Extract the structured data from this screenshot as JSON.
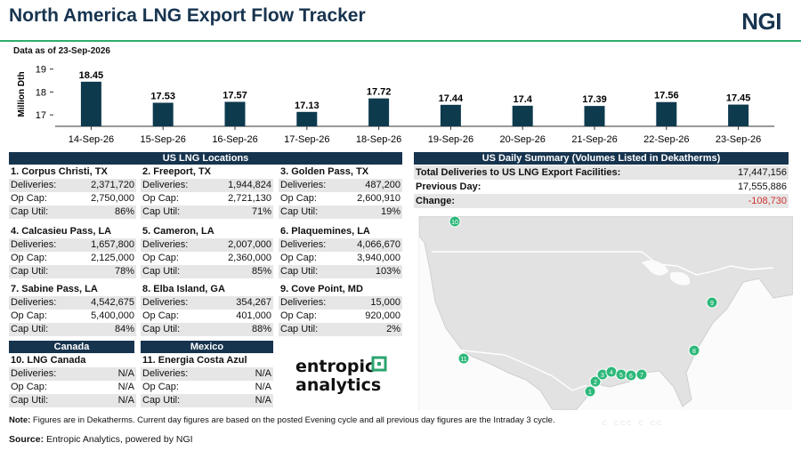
{
  "header": {
    "title": "North America LNG Export Flow Tracker",
    "logo": "NGI",
    "as_of": "Data as of 23-Sep-2026"
  },
  "chart_data": {
    "type": "bar",
    "categories": [
      "14-Sep-26",
      "15-Sep-26",
      "16-Sep-26",
      "17-Sep-26",
      "18-Sep-26",
      "19-Sep-26",
      "20-Sep-26",
      "21-Sep-26",
      "22-Sep-26",
      "23-Sep-26"
    ],
    "values": [
      18.45,
      17.53,
      17.57,
      17.13,
      17.72,
      17.44,
      17.4,
      17.39,
      17.56,
      17.45
    ],
    "value_labels": [
      "18.45",
      "17.53",
      "17.57",
      "17.13",
      "17.72",
      "17.44",
      "17.4",
      "17.39",
      "17.56",
      "17.45"
    ],
    "ylabel": "Million Dth",
    "yticks": [
      "17",
      "18",
      "19"
    ],
    "ylim": [
      16.5,
      19.3
    ],
    "color": "#0e3a4e"
  },
  "us_panel": {
    "title": "US LNG Locations"
  },
  "labels": {
    "deliveries": "Deliveries:",
    "op_cap": "Op Cap:",
    "cap_util": "Cap Util:"
  },
  "us_locations": [
    {
      "name": "1. Corpus Christi, TX",
      "deliveries": "2,371,720",
      "op_cap": "2,750,000",
      "cap_util": "86%"
    },
    {
      "name": "2. Freeport, TX",
      "deliveries": "1,944,824",
      "op_cap": "2,721,130",
      "cap_util": "71%"
    },
    {
      "name": "3. Golden Pass, TX",
      "deliveries": "487,200",
      "op_cap": "2,600,910",
      "cap_util": "19%"
    },
    {
      "name": "4. Calcasieu Pass, LA",
      "deliveries": "1,657,800",
      "op_cap": "2,125,000",
      "cap_util": "78%"
    },
    {
      "name": "5. Cameron, LA",
      "deliveries": "2,007,000",
      "op_cap": "2,360,000",
      "cap_util": "85%"
    },
    {
      "name": "6. Plaquemines, LA",
      "deliveries": "4,066,670",
      "op_cap": "3,940,000",
      "cap_util": "103%"
    },
    {
      "name": "7. Sabine Pass, LA",
      "deliveries": "4,542,675",
      "op_cap": "5,400,000",
      "cap_util": "84%"
    },
    {
      "name": "8. Elba Island, GA",
      "deliveries": "354,267",
      "op_cap": "401,000",
      "cap_util": "88%"
    },
    {
      "name": "9. Cove Point, MD",
      "deliveries": "15,000",
      "op_cap": "920,000",
      "cap_util": "2%"
    }
  ],
  "canada": {
    "title": "Canada",
    "name": "10. LNG Canada",
    "deliveries": "N/A",
    "op_cap": "N/A",
    "cap_util": "N/A"
  },
  "mexico": {
    "title": "Mexico",
    "name": "11. Energia Costa Azul",
    "deliveries": "N/A",
    "op_cap": "N/A",
    "cap_util": "N/A"
  },
  "summary": {
    "title": "US Daily Summary (Volumes Listed in Dekatherms)",
    "total_label": "Total Deliveries to US LNG Export Facilities:",
    "total_value": "17,447,156",
    "prev_label": "Previous Day:",
    "prev_value": "17,555,886",
    "change_label": "Change:",
    "change_value": "-108,730"
  },
  "map_markers": [
    "1",
    "2",
    "3",
    "4",
    "5",
    "6",
    "7",
    "8",
    "9",
    "10",
    "11"
  ],
  "brand": {
    "line1": "entropic",
    "line2": "analytics"
  },
  "footer": {
    "note_label": "Note:",
    "note_text": " Figures are in Dekatherms. Current day figures are based on the posted Evening cycle and all previous day figures are the Intraday 3 cycle.",
    "source_label": "Source:",
    "source_text": " Entropic Analytics, powered by NGI"
  },
  "colors": {
    "navy": "#17344f",
    "bar": "#0e3a4e",
    "green_rule": "#2eae6a",
    "marker": "#2db87a",
    "negative": "#d0312d"
  }
}
